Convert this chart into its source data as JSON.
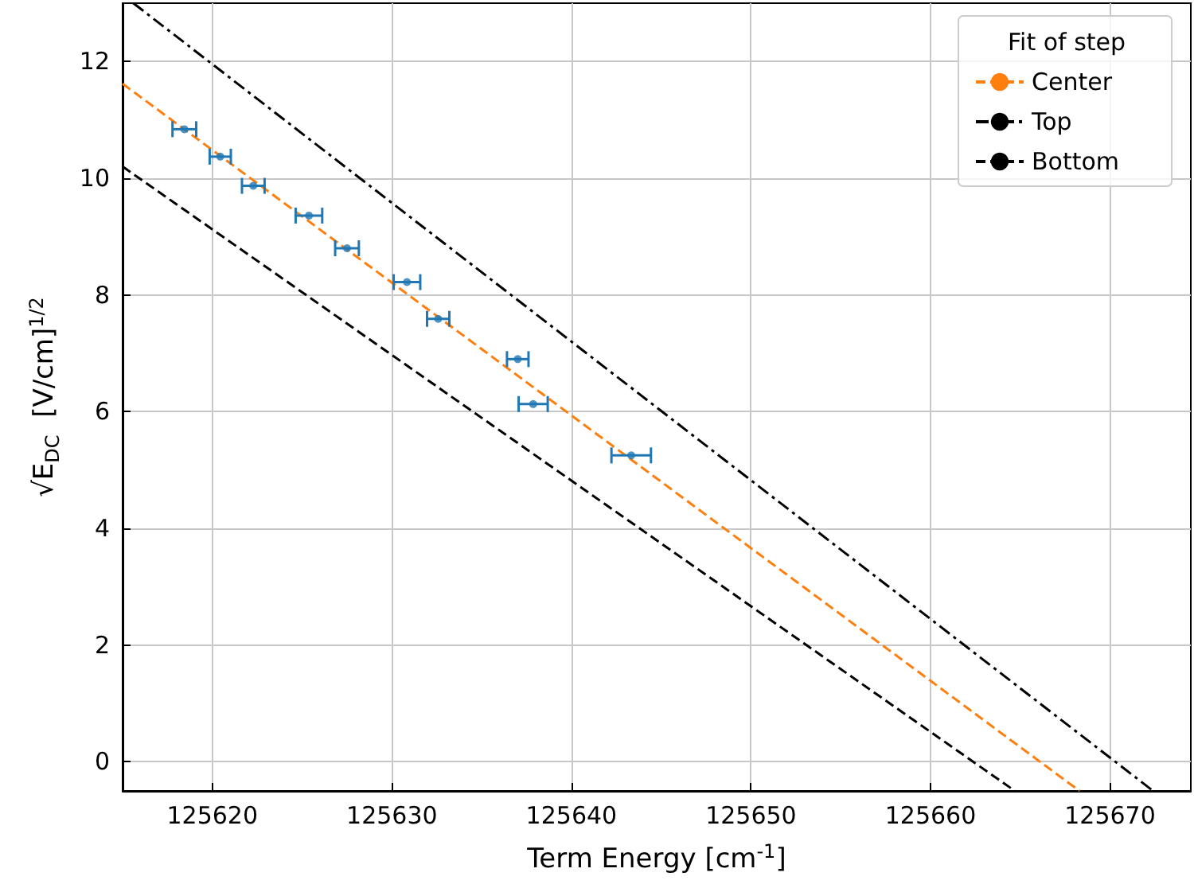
{
  "chart_data": {
    "type": "scatter",
    "xlabel": "Term Energy [cm$^{-1}$]",
    "ylabel": "√E$_{DC}$  [V/cm]$^{1/2}$",
    "legend_title": "Fit of step",
    "xlim": [
      125615,
      125674.5
    ],
    "xticks": [
      125620,
      125630,
      125640,
      125650,
      125660,
      125670
    ],
    "ylim": [
      -0.5,
      13
    ],
    "yticks": [
      0,
      2,
      4,
      6,
      8,
      10,
      12
    ],
    "grid": true,
    "legend": "top right",
    "marker": "circle",
    "series": [
      {
        "color": "#1f77b4",
        "x": [
          125618.44,
          125620.44,
          125622.28,
          125625.38,
          125627.5,
          125630.84,
          125632.58,
          125637.01,
          125637.87,
          125643.33
        ],
        "values": [
          10.84,
          10.37,
          9.87,
          9.36,
          8.8,
          8.22,
          7.59,
          6.9,
          6.13,
          5.25
        ],
        "xerrors": [
          0.66,
          0.59,
          0.63,
          0.74,
          0.66,
          0.74,
          0.62,
          0.6,
          0.81,
          1.1
        ]
      },
      {
        "type": "line",
        "name": "Center",
        "color": "#ff7f0e",
        "line_style": "dashed",
        "marker": "none",
        "x": [
          125615,
          125668.3
        ],
        "values": [
          11.62,
          -0.5
        ]
      },
      {
        "type": "line",
        "name": "Top",
        "color": "#000000",
        "line_style": "dashdot",
        "marker": "none",
        "x": [
          125615.6,
          125672.4
        ],
        "values": [
          13,
          -0.5
        ]
      },
      {
        "type": "line",
        "name": "Bottom",
        "color": "#000000",
        "line_style": "dashed",
        "marker": "none",
        "x": [
          125615,
          125664.7
        ],
        "values": [
          10.2,
          -0.5
        ]
      }
    ]
  }
}
